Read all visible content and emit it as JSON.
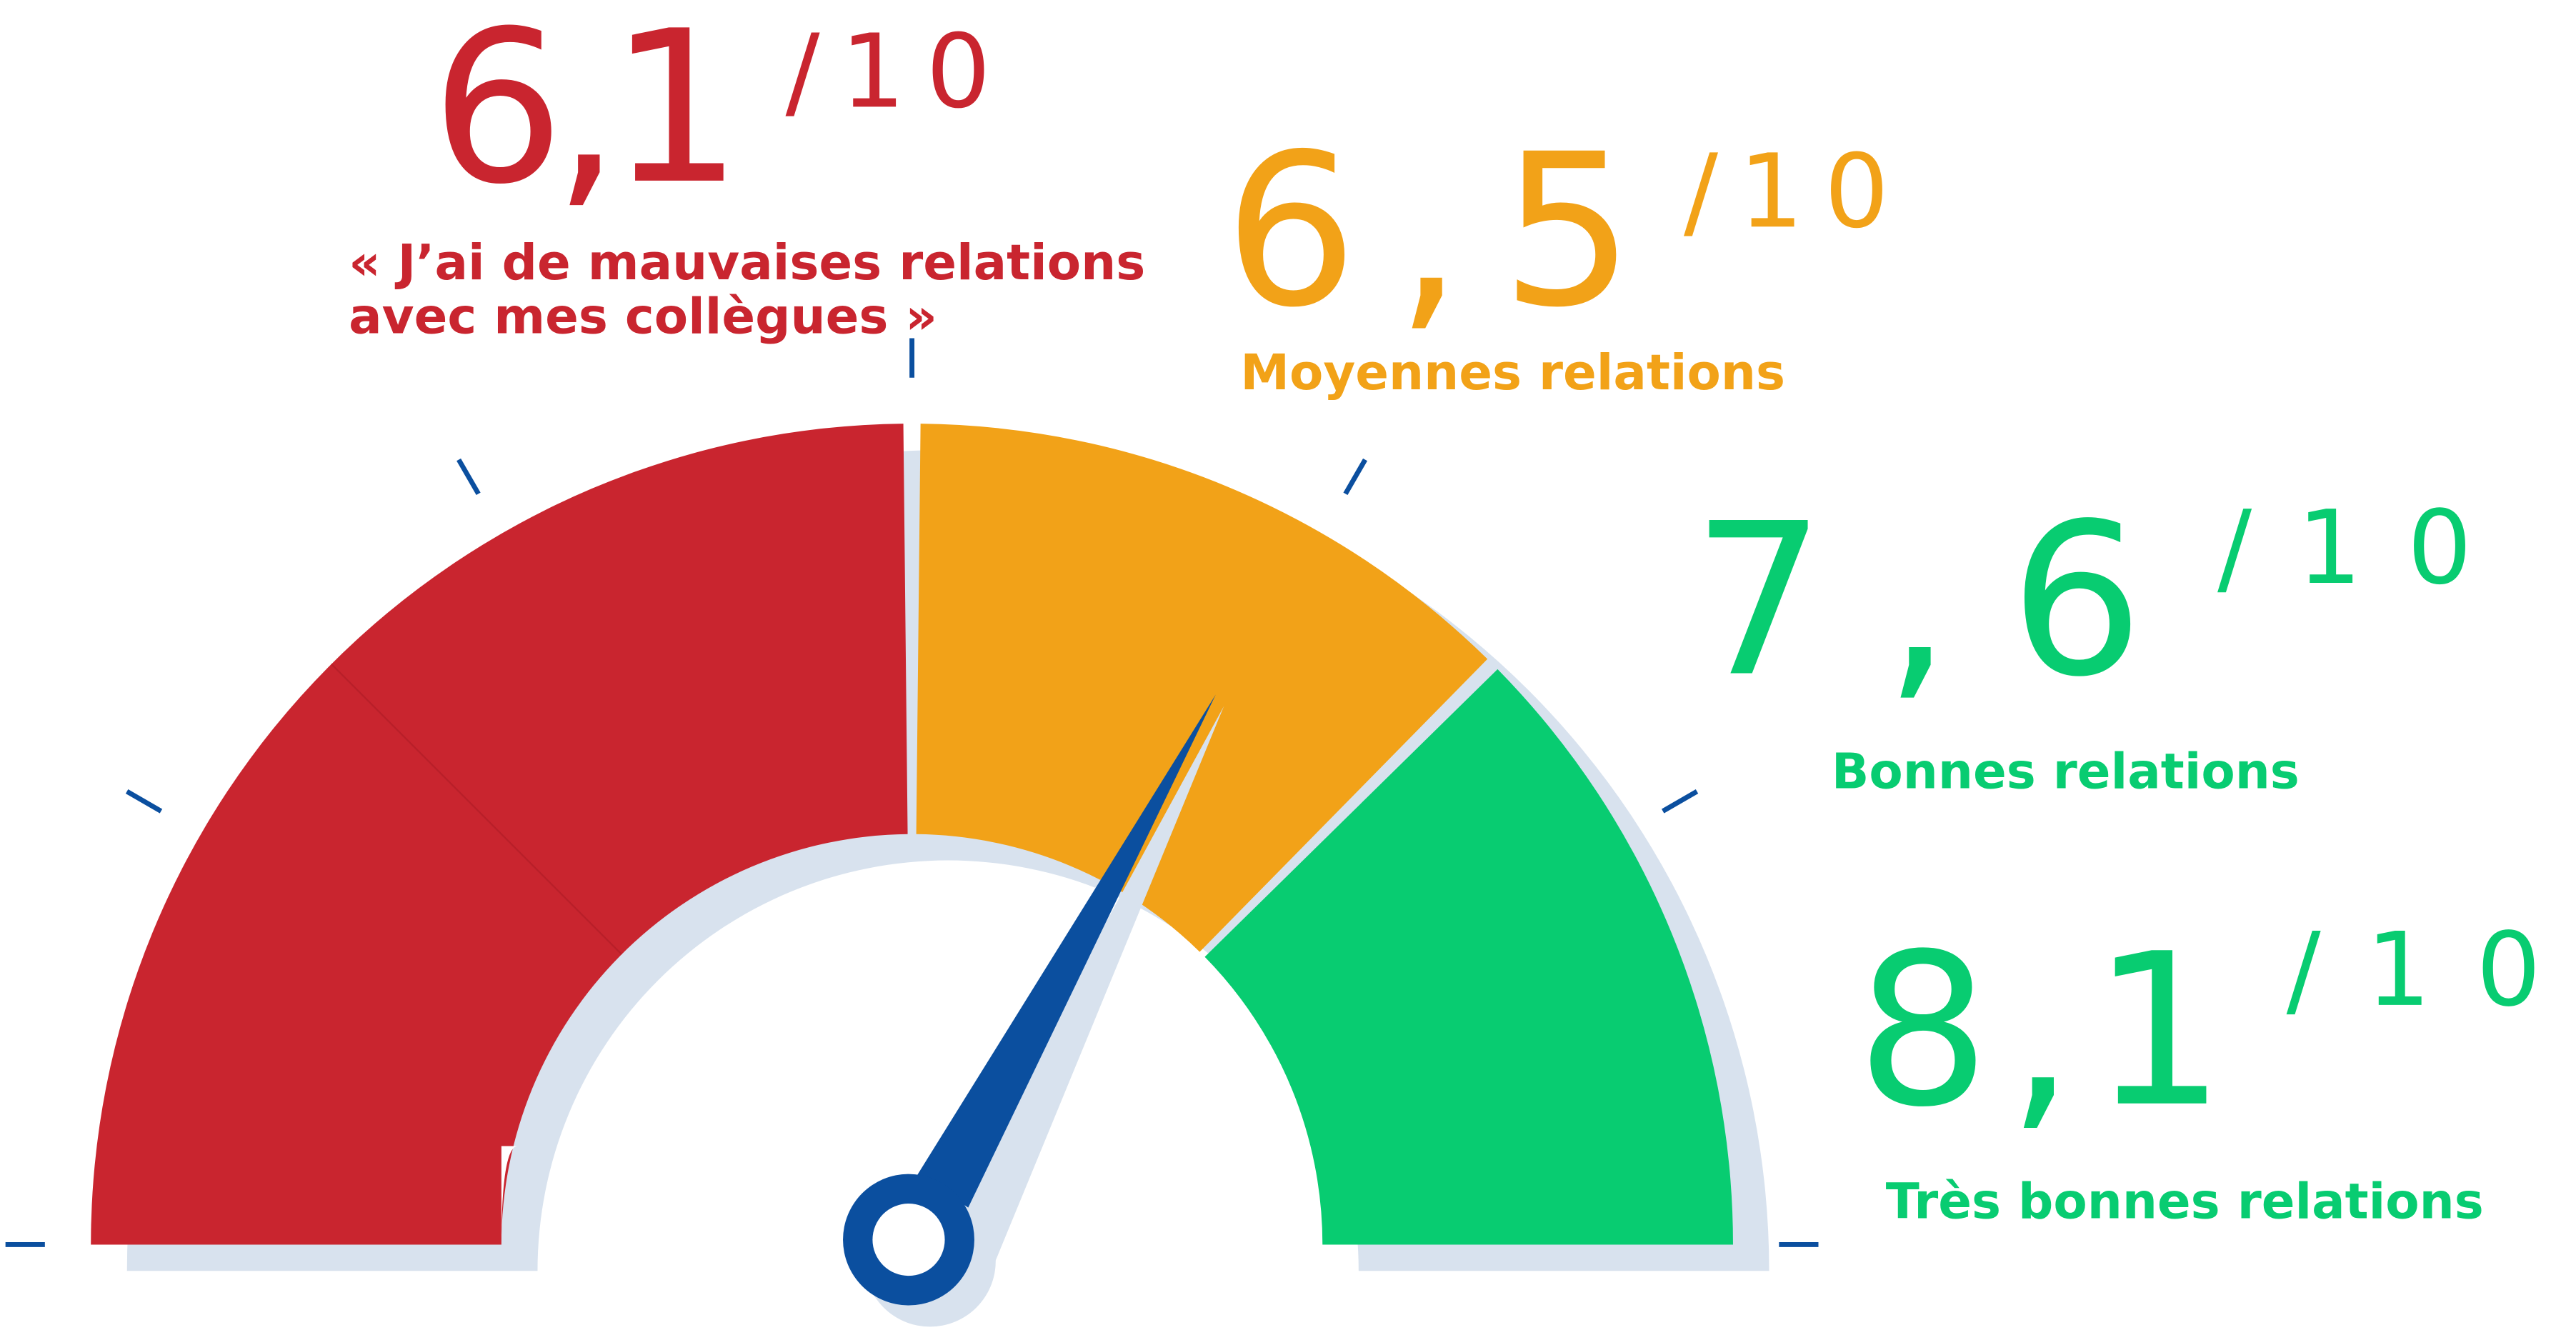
{
  "items": [
    {
      "score": "6,1",
      "scale": "/10",
      "label": [
        "« J’ai de mauvaises relations",
        "avec mes collègues »"
      ]
    },
    {
      "score": "6,5",
      "scale": "/10",
      "label": [
        "Moyennes relations"
      ]
    },
    {
      "score": "7,6",
      "scale": "/10",
      "label": [
        "Bonnes relations"
      ]
    },
    {
      "score": "8,1",
      "scale": "/10",
      "label": [
        "Très bonnes relations"
      ]
    }
  ]
}
